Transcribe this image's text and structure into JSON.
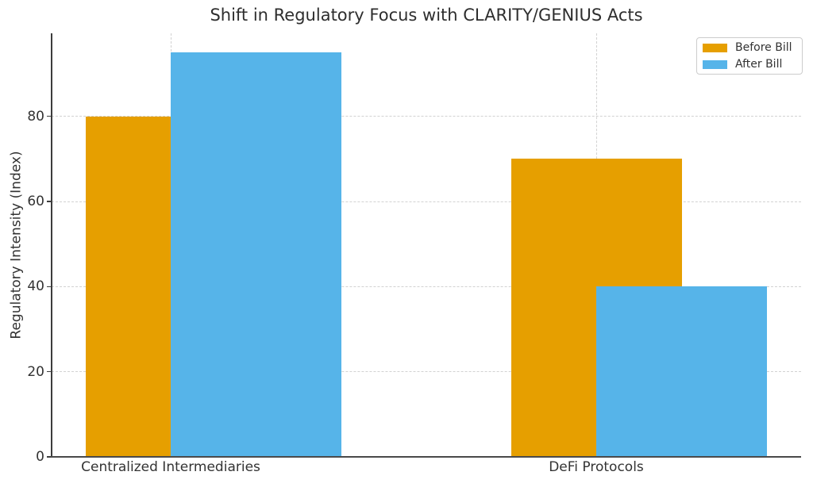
{
  "chart_data": {
    "type": "bar",
    "title": "Shift in Regulatory Focus with CLARITY/GENIUS Acts",
    "xlabel": "",
    "ylabel": "Regulatory Intensity (Index)",
    "categories": [
      "Centralized Intermediaries",
      "DeFi Protocols"
    ],
    "series": [
      {
        "name": "Before Bill",
        "color": "#E69F00",
        "values": [
          80,
          70
        ]
      },
      {
        "name": "After Bill",
        "color": "#56B4E9",
        "values": [
          95,
          40
        ]
      }
    ],
    "yticks": [
      0,
      20,
      40,
      60,
      80
    ],
    "ylim": [
      0,
      99.5
    ],
    "grid": "dashed, horizontal at yticks and vertical at category centers, drawn behind bars",
    "bar_style": "overlapping, second series offset right by half bar width and drawn on top",
    "legend_position": "upper right",
    "spines": "left and bottom only",
    "text_color": "#333333",
    "background": "#ffffff"
  }
}
